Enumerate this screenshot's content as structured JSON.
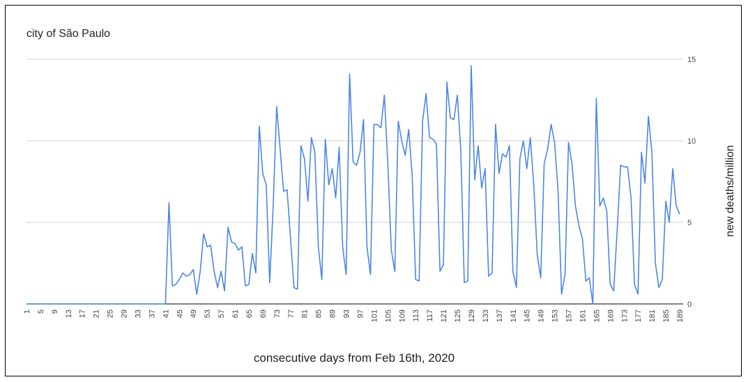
{
  "chart_data": {
    "type": "line",
    "title": "city of São Paulo",
    "xlabel": "consecutive days from Feb 16th, 2020",
    "ylabel": "new deaths/million",
    "ylim": [
      0,
      15
    ],
    "yticks": [
      0,
      5,
      10,
      15
    ],
    "xlim": [
      1,
      190
    ],
    "xticks": [
      1,
      5,
      9,
      13,
      17,
      21,
      25,
      29,
      33,
      37,
      41,
      45,
      49,
      53,
      57,
      61,
      65,
      69,
      73,
      77,
      81,
      85,
      89,
      93,
      97,
      101,
      105,
      109,
      113,
      117,
      121,
      125,
      129,
      133,
      137,
      141,
      145,
      149,
      153,
      157,
      161,
      165,
      169,
      173,
      177,
      181,
      185,
      189
    ],
    "y_axis_position": "right",
    "grid": true,
    "legend": "none",
    "line_color": "#4a86e8",
    "series": [
      {
        "values": [
          0,
          0,
          0,
          0,
          0,
          0,
          0,
          0,
          0,
          0,
          0,
          0,
          0,
          0,
          0,
          0,
          0,
          0,
          0,
          0,
          0,
          0,
          0,
          0,
          0,
          0,
          0,
          0,
          0,
          0,
          0,
          0,
          0,
          0,
          0,
          0,
          0,
          0,
          0,
          0,
          0,
          6.2,
          1.1,
          1.2,
          1.5,
          1.9,
          1.7,
          1.8,
          2.1,
          0.6,
          2.0,
          4.3,
          3.5,
          3.6,
          2.0,
          1.0,
          2.0,
          0.8,
          4.7,
          3.8,
          3.7,
          3.3,
          3.5,
          1.1,
          1.2,
          3.1,
          1.9,
          10.9,
          8.0,
          7.3,
          1.3,
          6.0,
          12.1,
          9.5,
          6.9,
          7.0,
          4.0,
          1.0,
          0.9,
          9.7,
          8.9,
          6.3,
          10.2,
          9.3,
          3.5,
          1.5,
          10.1,
          7.3,
          8.3,
          6.5,
          9.6,
          3.5,
          1.8,
          14.1,
          8.7,
          8.5,
          9.3,
          11.3,
          3.5,
          1.8,
          11.0,
          11.0,
          10.8,
          12.8,
          8.6,
          3.3,
          2.0,
          11.2,
          10.0,
          9.1,
          10.7,
          7.9,
          1.5,
          1.4,
          11.2,
          12.9,
          10.2,
          10.1,
          9.8,
          2.0,
          2.4,
          13.6,
          11.4,
          11.3,
          12.8,
          9.4,
          1.3,
          1.4,
          14.6,
          7.6,
          9.7,
          7.1,
          8.3,
          1.7,
          1.9,
          11.0,
          8.0,
          9.2,
          9.0,
          9.7,
          2.0,
          1.0,
          8.9,
          10.0,
          8.3,
          10.2,
          7.3,
          3.0,
          1.6,
          8.6,
          9.5,
          11.0,
          9.9,
          6.9,
          0.6,
          1.8,
          9.9,
          8.6,
          6.0,
          4.8,
          4.0,
          1.4,
          1.6,
          0.0,
          12.6,
          6.0,
          6.5,
          5.7,
          1.2,
          0.8,
          4.5,
          8.5,
          8.4,
          8.4,
          6.5,
          1.2,
          0.6,
          9.3,
          7.4,
          11.5,
          9.3,
          2.5,
          1.0,
          1.5,
          6.3,
          5.0,
          8.3,
          6.0,
          5.5
        ]
      }
    ]
  }
}
